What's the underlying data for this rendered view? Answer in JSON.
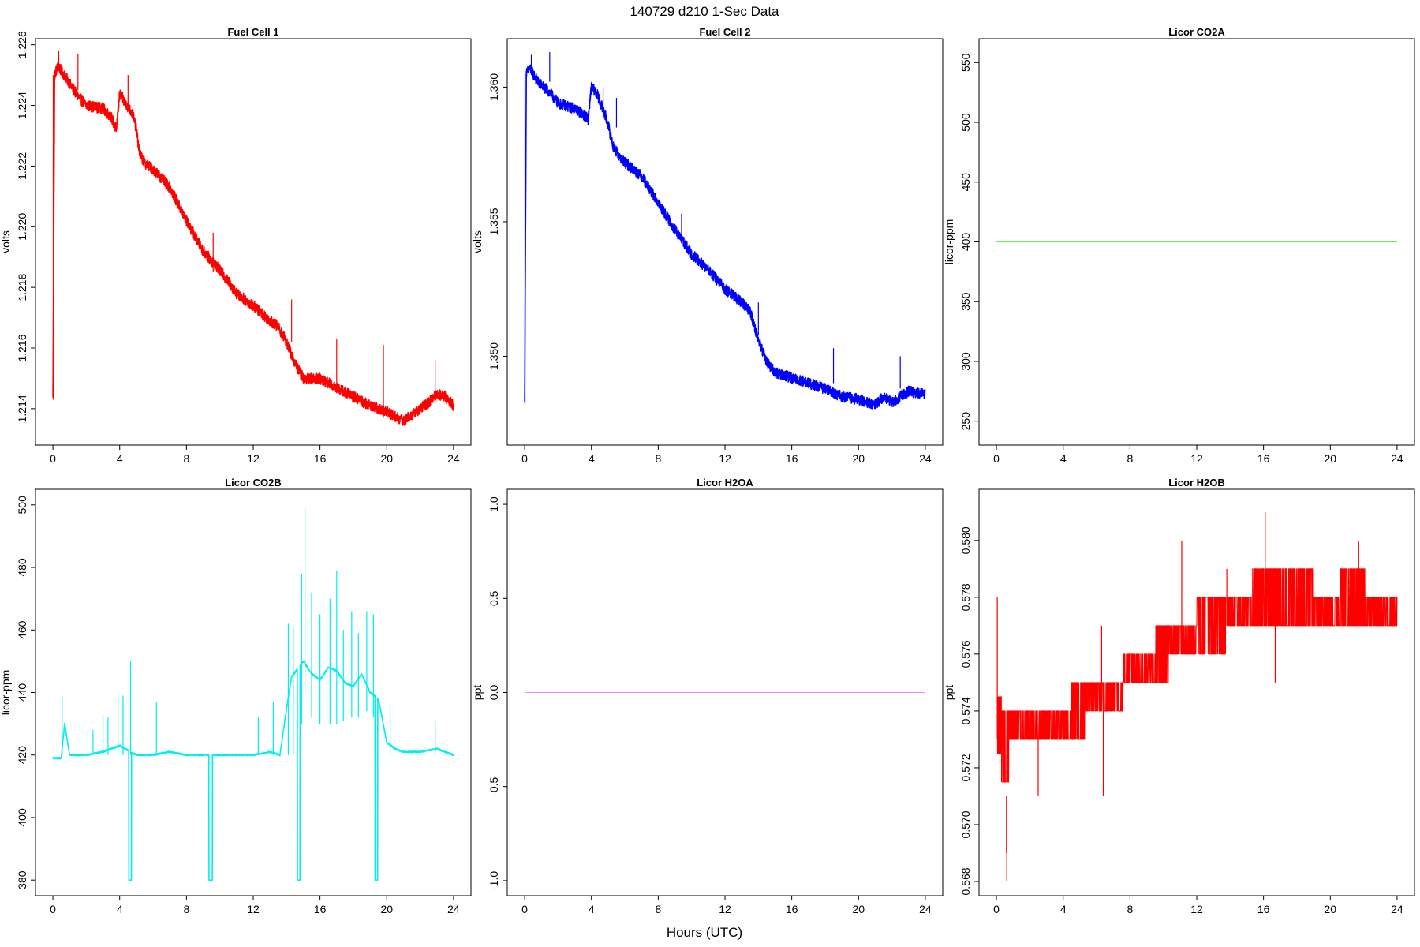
{
  "figure": {
    "title": "140729   d210   1-Sec Data",
    "xlabel": "Hours (UTC)"
  },
  "chart_data": [
    {
      "type": "line",
      "title": "Fuel Cell 1",
      "ylabel": "volts",
      "color": "#ff0000",
      "xlim": [
        0,
        24
      ],
      "ylim": [
        1.2128,
        1.2262
      ],
      "xticks": [
        0,
        4,
        8,
        12,
        16,
        20,
        24
      ],
      "yticks": [
        1.214,
        1.216,
        1.218,
        1.22,
        1.222,
        1.224,
        1.226
      ],
      "ytick_labels": [
        "1.214",
        "1.216",
        "1.218",
        "1.220",
        "1.222",
        "1.224",
        "1.226"
      ],
      "noise": 0.00018,
      "spikes": [
        [
          0.02,
          1.2143,
          1.225
        ],
        [
          0.35,
          1.2252,
          1.2258
        ],
        [
          1.5,
          1.2245,
          1.2257
        ],
        [
          4.5,
          1.224,
          1.225
        ],
        [
          9.6,
          1.2185,
          1.2198
        ],
        [
          14.3,
          1.2162,
          1.2176
        ],
        [
          17.0,
          1.2148,
          1.2163
        ],
        [
          19.8,
          1.2137,
          1.2161
        ],
        [
          22.9,
          1.2143,
          1.2156
        ]
      ],
      "x": [
        0,
        0.1,
        0.3,
        0.8,
        1.5,
        2.0,
        3.0,
        3.5,
        3.8,
        4.0,
        4.3,
        4.8,
        5.0,
        5.2,
        5.5,
        6.0,
        7.0,
        8.0,
        9.0,
        9.8,
        10.5,
        11.0,
        12.0,
        12.8,
        13.5,
        14.0,
        14.5,
        15.0,
        16.0,
        17.0,
        18.0,
        19.0,
        20.0,
        21.0,
        21.5,
        22.0,
        22.5,
        23.0,
        23.5,
        24.0
      ],
      "y": [
        1.2143,
        1.225,
        1.2253,
        1.2249,
        1.2243,
        1.224,
        1.2239,
        1.2236,
        1.2232,
        1.2244,
        1.2241,
        1.2237,
        1.2232,
        1.2224,
        1.2221,
        1.2219,
        1.2213,
        1.2202,
        1.2192,
        1.2187,
        1.2182,
        1.2178,
        1.2174,
        1.217,
        1.2167,
        1.2162,
        1.2155,
        1.215,
        1.215,
        1.2147,
        1.2144,
        1.2141,
        1.2139,
        1.2136,
        1.2138,
        1.214,
        1.2142,
        1.2145,
        1.2144,
        1.2141
      ]
    },
    {
      "type": "line",
      "title": "Fuel Cell 2",
      "ylabel": "volts",
      "color": "#0000ff",
      "xlim": [
        0,
        24
      ],
      "ylim": [
        1.3467,
        1.3618
      ],
      "xticks": [
        0,
        4,
        8,
        12,
        16,
        20,
        24
      ],
      "yticks": [
        1.35,
        1.355,
        1.36
      ],
      "ytick_labels": [
        "1.350",
        "1.355",
        "1.360"
      ],
      "noise": 0.0002,
      "spikes": [
        [
          0.02,
          1.3482,
          1.3605
        ],
        [
          0.4,
          1.3606,
          1.3612
        ],
        [
          1.5,
          1.3602,
          1.3613
        ],
        [
          4.7,
          1.3588,
          1.36
        ],
        [
          5.5,
          1.3585,
          1.3596
        ],
        [
          9.4,
          1.3542,
          1.3553
        ],
        [
          14.0,
          1.3508,
          1.352
        ],
        [
          18.5,
          1.349,
          1.3503
        ],
        [
          22.5,
          1.3488,
          1.35
        ]
      ],
      "x": [
        0,
        0.1,
        0.3,
        0.8,
        1.5,
        2.0,
        3.0,
        3.5,
        3.8,
        4.0,
        4.3,
        4.8,
        5.0,
        5.3,
        5.7,
        6.0,
        7.0,
        8.0,
        9.0,
        10.0,
        11.0,
        12.0,
        12.8,
        13.5,
        14.0,
        14.5,
        15.0,
        16.0,
        17.0,
        18.0,
        19.0,
        20.0,
        21.0,
        21.5,
        22.0,
        22.5,
        23.0,
        24.0
      ],
      "y": [
        1.3482,
        1.3605,
        1.3607,
        1.3602,
        1.3598,
        1.3594,
        1.3592,
        1.359,
        1.3588,
        1.36,
        1.3598,
        1.359,
        1.3586,
        1.3578,
        1.3574,
        1.3572,
        1.3567,
        1.3557,
        1.3547,
        1.3538,
        1.3532,
        1.3525,
        1.3521,
        1.3517,
        1.3506,
        1.3498,
        1.3494,
        1.3492,
        1.349,
        1.3488,
        1.3485,
        1.3484,
        1.3482,
        1.3485,
        1.3483,
        1.3485,
        1.3487,
        1.3486
      ]
    },
    {
      "type": "line",
      "title": "Licor CO2A",
      "ylabel": "licor-ppm",
      "color": "#66ee66",
      "xlim": [
        0,
        24
      ],
      "ylim": [
        230,
        570
      ],
      "xticks": [
        0,
        4,
        8,
        12,
        16,
        20,
        24
      ],
      "yticks": [
        250,
        300,
        350,
        400,
        450,
        500,
        550
      ],
      "ytick_labels": [
        "250",
        "300",
        "350",
        "400",
        "450",
        "500",
        "550"
      ],
      "noise": 0,
      "spikes": [],
      "x": [
        0,
        24
      ],
      "y": [
        400,
        400
      ]
    },
    {
      "type": "line",
      "title": "Licor CO2B",
      "ylabel": "licor-ppm",
      "color": "#00eeee",
      "xlim": [
        0,
        24
      ],
      "ylim": [
        375,
        505
      ],
      "xticks": [
        0,
        4,
        8,
        12,
        16,
        20,
        24
      ],
      "yticks": [
        380,
        400,
        420,
        440,
        460,
        480,
        500
      ],
      "ytick_labels": [
        "380",
        "400",
        "420",
        "440",
        "460",
        "480",
        "500"
      ],
      "noise": 0.25,
      "spikes": [
        [
          0.55,
          420,
          439
        ],
        [
          2.4,
          420,
          428
        ],
        [
          3.0,
          420,
          433
        ],
        [
          3.3,
          420,
          432
        ],
        [
          3.9,
          420,
          440
        ],
        [
          4.2,
          420,
          439
        ],
        [
          4.65,
          420,
          450
        ],
        [
          6.2,
          420,
          437
        ],
        [
          12.3,
          420,
          432
        ],
        [
          13.2,
          420,
          437
        ],
        [
          14.1,
          420,
          462
        ],
        [
          14.4,
          420,
          461
        ],
        [
          14.9,
          430,
          478
        ],
        [
          15.1,
          440,
          499
        ],
        [
          15.5,
          432,
          472
        ],
        [
          16.0,
          430,
          465
        ],
        [
          16.6,
          430,
          470
        ],
        [
          17.0,
          430,
          479
        ],
        [
          17.4,
          431,
          460
        ],
        [
          17.9,
          432,
          466
        ],
        [
          18.3,
          432,
          459
        ],
        [
          18.8,
          434,
          466
        ],
        [
          19.2,
          432,
          465
        ],
        [
          20.2,
          420,
          436
        ],
        [
          22.9,
          420,
          431
        ]
      ],
      "dips": [
        [
          4.55,
          4.7,
          380
        ],
        [
          9.35,
          9.55,
          380
        ],
        [
          14.65,
          14.8,
          380
        ],
        [
          19.3,
          19.45,
          380
        ]
      ],
      "x": [
        0,
        0.5,
        0.7,
        1.0,
        2.0,
        3.0,
        4.0,
        5.0,
        6.0,
        7.0,
        8.0,
        9.0,
        10.0,
        11.0,
        12.0,
        13.0,
        13.6,
        14.0,
        14.3,
        15.0,
        15.5,
        16.0,
        16.5,
        17.0,
        17.5,
        18.0,
        18.5,
        19.0,
        19.5,
        20.0,
        20.5,
        21.0,
        22.0,
        23.0,
        24.0
      ],
      "y": [
        419,
        419,
        430,
        420,
        420,
        421,
        423,
        420,
        420,
        421,
        420,
        420,
        420,
        420,
        420,
        421,
        420,
        435,
        445,
        450,
        446,
        444,
        448,
        447,
        443,
        442,
        446,
        440,
        438,
        424,
        422,
        421,
        421,
        422,
        420
      ]
    },
    {
      "type": "line",
      "title": "Licor H2OA",
      "ylabel": "ppt",
      "color": "#dd99ee",
      "xlim": [
        0,
        24
      ],
      "ylim": [
        -1.08,
        1.08
      ],
      "xticks": [
        0,
        4,
        8,
        12,
        16,
        20,
        24
      ],
      "yticks": [
        -1.0,
        -0.5,
        0.0,
        0.5,
        1.0
      ],
      "ytick_labels": [
        "-1.0",
        "-0.5",
        "0.0",
        "0.5",
        "1.0"
      ],
      "noise": 0,
      "spikes": [],
      "x": [
        0,
        24
      ],
      "y": [
        0,
        0
      ]
    },
    {
      "type": "line",
      "title": "Licor H2OB",
      "ylabel": "ppt",
      "color": "#ff0000",
      "xlim": [
        0,
        24
      ],
      "ylim": [
        0.5675,
        0.5818
      ],
      "xticks": [
        0,
        4,
        8,
        12,
        16,
        20,
        24
      ],
      "yticks": [
        0.568,
        0.57,
        0.572,
        0.574,
        0.576,
        0.578,
        0.58
      ],
      "ytick_labels": [
        "0.568",
        "0.570",
        "0.572",
        "0.574",
        "0.576",
        "0.578",
        "0.580"
      ],
      "step": 0.001,
      "noise": 0,
      "spikes": [
        [
          0.05,
          0.573,
          0.578
        ],
        [
          0.6,
          0.571,
          0.569
        ],
        [
          0.62,
          0.571,
          0.568
        ],
        [
          2.5,
          0.573,
          0.571
        ],
        [
          6.4,
          0.574,
          0.571
        ],
        [
          6.3,
          0.575,
          0.577
        ],
        [
          11.1,
          0.576,
          0.58
        ],
        [
          13.8,
          0.577,
          0.579
        ],
        [
          16.1,
          0.578,
          0.581
        ],
        [
          16.7,
          0.577,
          0.575
        ],
        [
          21.7,
          0.578,
          0.58
        ]
      ],
      "levels": [
        [
          0.05,
          0.3,
          0.5725,
          0.5745
        ],
        [
          0.3,
          0.75,
          0.5715,
          0.574
        ],
        [
          0.75,
          2.0,
          0.573,
          0.574
        ],
        [
          2.0,
          4.5,
          0.573,
          0.574
        ],
        [
          4.5,
          5.3,
          0.573,
          0.575
        ],
        [
          5.3,
          6.5,
          0.574,
          0.575
        ],
        [
          6.5,
          7.6,
          0.574,
          0.575
        ],
        [
          7.6,
          9.5,
          0.575,
          0.576
        ],
        [
          9.5,
          10.3,
          0.575,
          0.577
        ],
        [
          10.3,
          12.0,
          0.576,
          0.577
        ],
        [
          12.0,
          13.8,
          0.576,
          0.578
        ],
        [
          13.8,
          15.3,
          0.577,
          0.578
        ],
        [
          15.3,
          19.0,
          0.577,
          0.579
        ],
        [
          19.0,
          20.6,
          0.577,
          0.578
        ],
        [
          20.6,
          22.1,
          0.577,
          0.579
        ],
        [
          22.1,
          24.0,
          0.577,
          0.578
        ]
      ],
      "x": [
        0,
        24
      ],
      "y": [
        0.573,
        0.5775
      ]
    }
  ]
}
